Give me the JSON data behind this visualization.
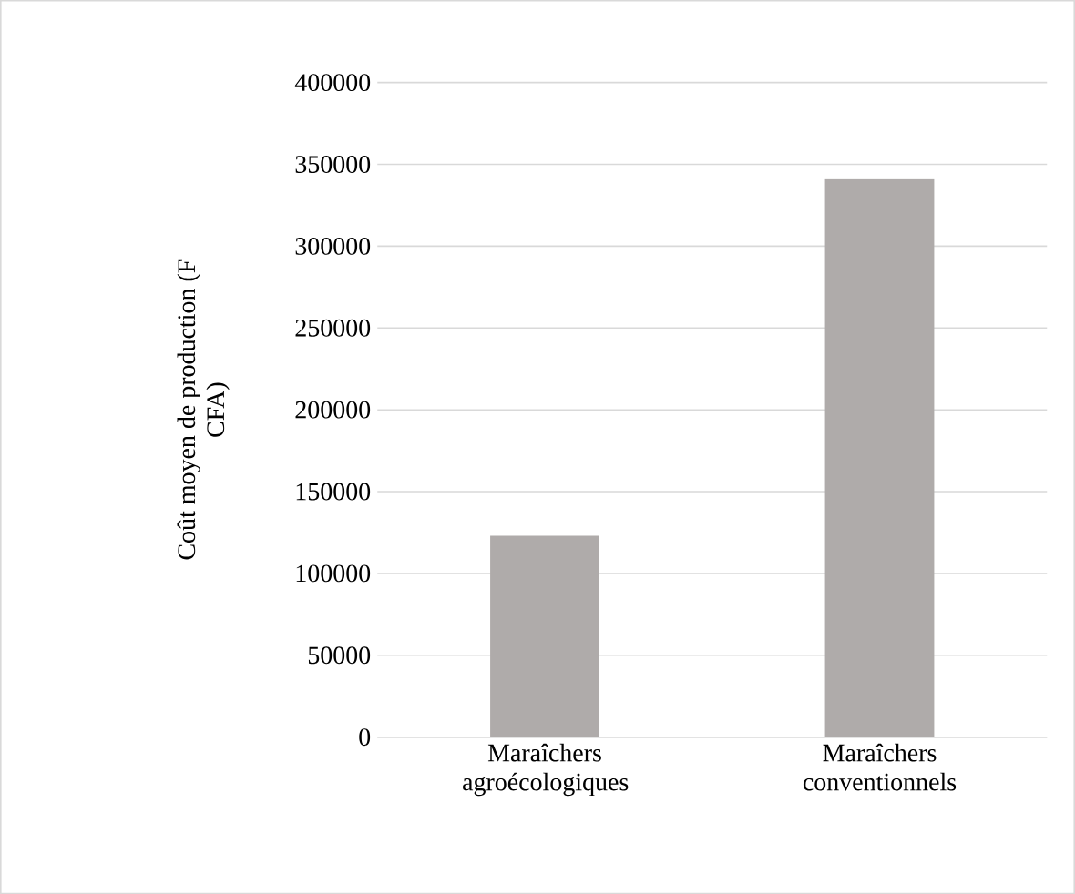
{
  "chart_data": {
    "type": "bar",
    "ylabel": "Coût moyen de production (F CFA)",
    "categories": [
      "Maraîchers agroécologiques",
      "Maraîchers conventionnels"
    ],
    "values": [
      123000,
      341000
    ],
    "color": "#afabaa",
    "ylim": [
      0,
      400000
    ],
    "yticks": [
      0,
      50000,
      100000,
      150000,
      200000,
      250000,
      300000,
      350000,
      400000
    ],
    "grid": "y"
  }
}
